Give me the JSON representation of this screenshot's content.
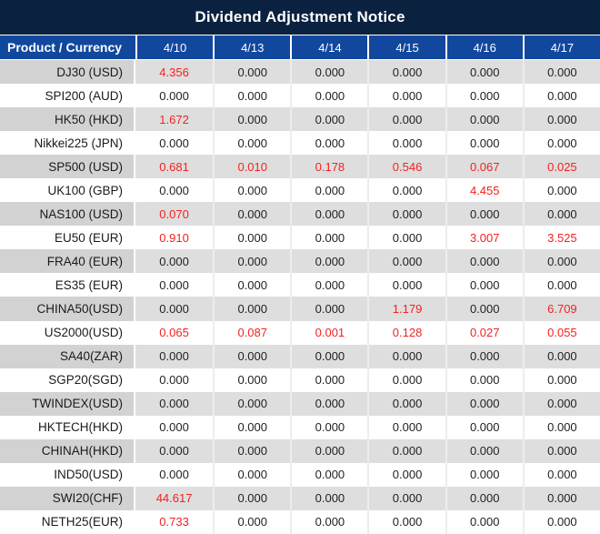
{
  "title": "Dividend Adjustment Notice",
  "colors": {
    "title_bar_bg": "#0a2140",
    "header_bg": "#11489e",
    "header_text": "#ffffff",
    "row_gray_label": "#d2d2d2",
    "row_gray_value": "#dedede",
    "value_text": "#1f1f1f",
    "nonzero_value_red": "#f22222"
  },
  "table": {
    "product_header": "Product / Currency",
    "date_headers": [
      "4/10",
      "4/13",
      "4/14",
      "4/15",
      "4/16",
      "4/17"
    ],
    "rows": [
      {
        "product": "DJ30 (USD)",
        "values": [
          "4.356",
          "0.000",
          "0.000",
          "0.000",
          "0.000",
          "0.000"
        ]
      },
      {
        "product": "SPI200 (AUD)",
        "values": [
          "0.000",
          "0.000",
          "0.000",
          "0.000",
          "0.000",
          "0.000"
        ]
      },
      {
        "product": "HK50 (HKD)",
        "values": [
          "1.672",
          "0.000",
          "0.000",
          "0.000",
          "0.000",
          "0.000"
        ]
      },
      {
        "product": "Nikkei225 (JPN)",
        "values": [
          "0.000",
          "0.000",
          "0.000",
          "0.000",
          "0.000",
          "0.000"
        ]
      },
      {
        "product": "SP500 (USD)",
        "values": [
          "0.681",
          "0.010",
          "0.178",
          "0.546",
          "0.067",
          "0.025"
        ]
      },
      {
        "product": "UK100 (GBP)",
        "values": [
          "0.000",
          "0.000",
          "0.000",
          "0.000",
          "4.455",
          "0.000"
        ]
      },
      {
        "product": "NAS100 (USD)",
        "values": [
          "0.070",
          "0.000",
          "0.000",
          "0.000",
          "0.000",
          "0.000"
        ]
      },
      {
        "product": "EU50 (EUR)",
        "values": [
          "0.910",
          "0.000",
          "0.000",
          "0.000",
          "3.007",
          "3.525"
        ]
      },
      {
        "product": "FRA40 (EUR)",
        "values": [
          "0.000",
          "0.000",
          "0.000",
          "0.000",
          "0.000",
          "0.000"
        ]
      },
      {
        "product": "ES35 (EUR)",
        "values": [
          "0.000",
          "0.000",
          "0.000",
          "0.000",
          "0.000",
          "0.000"
        ]
      },
      {
        "product": "CHINA50(USD)",
        "values": [
          "0.000",
          "0.000",
          "0.000",
          "1.179",
          "0.000",
          "6.709"
        ]
      },
      {
        "product": "US2000(USD)",
        "values": [
          "0.065",
          "0.087",
          "0.001",
          "0.128",
          "0.027",
          "0.055"
        ]
      },
      {
        "product": "SA40(ZAR)",
        "values": [
          "0.000",
          "0.000",
          "0.000",
          "0.000",
          "0.000",
          "0.000"
        ]
      },
      {
        "product": "SGP20(SGD)",
        "values": [
          "0.000",
          "0.000",
          "0.000",
          "0.000",
          "0.000",
          "0.000"
        ]
      },
      {
        "product": "TWINDEX(USD)",
        "values": [
          "0.000",
          "0.000",
          "0.000",
          "0.000",
          "0.000",
          "0.000"
        ]
      },
      {
        "product": "HKTECH(HKD)",
        "values": [
          "0.000",
          "0.000",
          "0.000",
          "0.000",
          "0.000",
          "0.000"
        ]
      },
      {
        "product": "CHINAH(HKD)",
        "values": [
          "0.000",
          "0.000",
          "0.000",
          "0.000",
          "0.000",
          "0.000"
        ]
      },
      {
        "product": "IND50(USD)",
        "values": [
          "0.000",
          "0.000",
          "0.000",
          "0.000",
          "0.000",
          "0.000"
        ]
      },
      {
        "product": "SWI20(CHF)",
        "values": [
          "44.617",
          "0.000",
          "0.000",
          "0.000",
          "0.000",
          "0.000"
        ]
      },
      {
        "product": "NETH25(EUR)",
        "values": [
          "0.733",
          "0.000",
          "0.000",
          "0.000",
          "0.000",
          "0.000"
        ]
      }
    ]
  },
  "chart_data": {
    "type": "table",
    "title": "Dividend Adjustment Notice",
    "columns": [
      "Product / Currency",
      "4/10",
      "4/13",
      "4/14",
      "4/15",
      "4/16",
      "4/17"
    ],
    "rows": [
      [
        "DJ30 (USD)",
        4.356,
        0.0,
        0.0,
        0.0,
        0.0,
        0.0
      ],
      [
        "SPI200 (AUD)",
        0.0,
        0.0,
        0.0,
        0.0,
        0.0,
        0.0
      ],
      [
        "HK50 (HKD)",
        1.672,
        0.0,
        0.0,
        0.0,
        0.0,
        0.0
      ],
      [
        "Nikkei225 (JPN)",
        0.0,
        0.0,
        0.0,
        0.0,
        0.0,
        0.0
      ],
      [
        "SP500 (USD)",
        0.681,
        0.01,
        0.178,
        0.546,
        0.067,
        0.025
      ],
      [
        "UK100 (GBP)",
        0.0,
        0.0,
        0.0,
        0.0,
        4.455,
        0.0
      ],
      [
        "NAS100 (USD)",
        0.07,
        0.0,
        0.0,
        0.0,
        0.0,
        0.0
      ],
      [
        "EU50 (EUR)",
        0.91,
        0.0,
        0.0,
        0.0,
        3.007,
        3.525
      ],
      [
        "FRA40 (EUR)",
        0.0,
        0.0,
        0.0,
        0.0,
        0.0,
        0.0
      ],
      [
        "ES35 (EUR)",
        0.0,
        0.0,
        0.0,
        0.0,
        0.0,
        0.0
      ],
      [
        "CHINA50(USD)",
        0.0,
        0.0,
        0.0,
        1.179,
        0.0,
        6.709
      ],
      [
        "US2000(USD)",
        0.065,
        0.087,
        0.001,
        0.128,
        0.027,
        0.055
      ],
      [
        "SA40(ZAR)",
        0.0,
        0.0,
        0.0,
        0.0,
        0.0,
        0.0
      ],
      [
        "SGP20(SGD)",
        0.0,
        0.0,
        0.0,
        0.0,
        0.0,
        0.0
      ],
      [
        "TWINDEX(USD)",
        0.0,
        0.0,
        0.0,
        0.0,
        0.0,
        0.0
      ],
      [
        "HKTECH(HKD)",
        0.0,
        0.0,
        0.0,
        0.0,
        0.0,
        0.0
      ],
      [
        "CHINAH(HKD)",
        0.0,
        0.0,
        0.0,
        0.0,
        0.0,
        0.0
      ],
      [
        "IND50(USD)",
        0.0,
        0.0,
        0.0,
        0.0,
        0.0,
        0.0
      ],
      [
        "SWI20(CHF)",
        44.617,
        0.0,
        0.0,
        0.0,
        0.0,
        0.0
      ],
      [
        "NETH25(EUR)",
        0.733,
        0.0,
        0.0,
        0.0,
        0.0,
        0.0
      ]
    ],
    "notes": "Non-zero adjustment values are rendered in red; zero values in black. Rows alternate gray/white starting with gray."
  }
}
